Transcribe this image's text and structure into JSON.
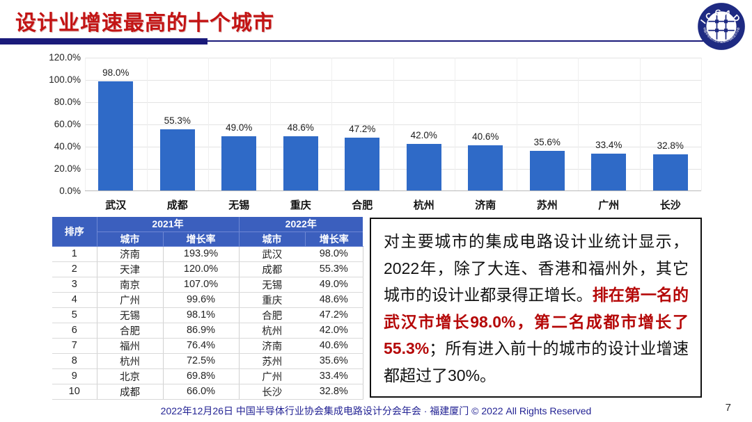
{
  "slide": {
    "title": "设计业增速最高的十个城市",
    "page_number": "7",
    "footer": "2022年12月26日 中国半导体行业协会集成电路设计分会年会 · 福建厦门 © 2022 All Rights Reserved",
    "logo_text": "ICCAD",
    "logo_ring_text": "中国半导体行业协会集成电路设计分会"
  },
  "colors": {
    "title_red": "#c31414",
    "navy": "#1a1a7a",
    "bar_blue": "#2f6ac7",
    "table_header_blue": "#3b5fbe",
    "highlight_red": "#b50808"
  },
  "chart_data": {
    "type": "bar",
    "title": "",
    "xlabel": "",
    "ylabel": "",
    "categories": [
      "武汉",
      "成都",
      "无锡",
      "重庆",
      "合肥",
      "杭州",
      "济南",
      "苏州",
      "广州",
      "长沙"
    ],
    "values": [
      98.0,
      55.3,
      49.0,
      48.6,
      47.2,
      42.0,
      40.6,
      35.6,
      33.4,
      32.8
    ],
    "bar_labels": [
      "98.0%",
      "55.3%",
      "49.0%",
      "48.6%",
      "47.2%",
      "42.0%",
      "40.6%",
      "35.6%",
      "33.4%",
      "32.8%"
    ],
    "y_ticks": [
      "120.0%",
      "100.0%",
      "80.0%",
      "60.0%",
      "40.0%",
      "20.0%",
      "0.0%"
    ],
    "ylim": [
      0,
      120
    ],
    "grid": true,
    "legend": false
  },
  "table": {
    "rank_header": "排序",
    "year_headers": [
      "2021年",
      "2022年"
    ],
    "sub_headers": [
      "城市",
      "增长率",
      "城市",
      "增长率"
    ],
    "rows": [
      [
        "1",
        "济南",
        "193.9%",
        "武汉",
        "98.0%"
      ],
      [
        "2",
        "天津",
        "120.0%",
        "成都",
        "55.3%"
      ],
      [
        "3",
        "南京",
        "107.0%",
        "无锡",
        "49.0%"
      ],
      [
        "4",
        "广州",
        "99.6%",
        "重庆",
        "48.6%"
      ],
      [
        "5",
        "无锡",
        "98.1%",
        "合肥",
        "47.2%"
      ],
      [
        "6",
        "合肥",
        "86.9%",
        "杭州",
        "42.0%"
      ],
      [
        "7",
        "福州",
        "76.4%",
        "济南",
        "40.6%"
      ],
      [
        "8",
        "杭州",
        "72.5%",
        "苏州",
        "35.6%"
      ],
      [
        "9",
        "北京",
        "69.8%",
        "广州",
        "33.4%"
      ],
      [
        "10",
        "成都",
        "66.0%",
        "长沙",
        "32.8%"
      ]
    ]
  },
  "note": {
    "text_before": "对主要城市的集成电路设计业统计显示，2022年，除了大连、香港和福州外，其它城市的设计业都录得正增长。",
    "text_highlight": "排在第一名的武汉市增长98.0%，第二名成都市增长了55.3%",
    "text_after": "；所有进入前十的城市的设计业增速都超过了30%。"
  }
}
